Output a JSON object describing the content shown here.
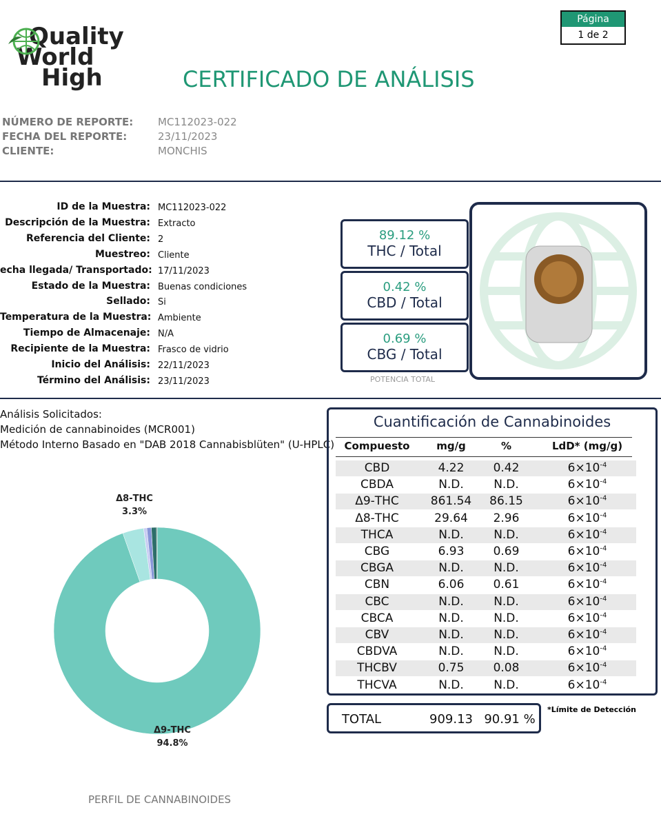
{
  "header": {
    "logo": [
      "Quality",
      "World",
      "High"
    ],
    "title": "CERTIFICADO DE ANÁLISIS",
    "page_label": "Página",
    "page": "1 de 2"
  },
  "report": [
    {
      "label": "NÚMERO DE REPORTE:",
      "value": "MC112023-022"
    },
    {
      "label": "FECHA DEL REPORTE:",
      "value": "23/11/2023"
    },
    {
      "label": "CLIENTE:",
      "value": "MONCHIS"
    }
  ],
  "sample": [
    {
      "label": "ID de la Muestra:",
      "value": "MC112023-022"
    },
    {
      "label": "Descripción de la Muestra:",
      "value": "Extracto"
    },
    {
      "label": "Referencia del Cliente:",
      "value": "2"
    },
    {
      "label": "Muestreo:",
      "value": "Cliente"
    },
    {
      "label": "echa llegada/ Transportado:",
      "value": "17/11/2023"
    },
    {
      "label": "Estado de la Muestra:",
      "value": "Buenas condiciones"
    },
    {
      "label": "Sellado:",
      "value": "Si"
    },
    {
      "label": "Temperatura de la Muestra:",
      "value": "Ambiente"
    },
    {
      "label": "Tiempo de Almacenaje:",
      "value": "N/A"
    },
    {
      "label": "Recipiente de la Muestra:",
      "value": "Frasco de vidrio"
    },
    {
      "label": "Inicio del Análisis:",
      "value": "22/11/2023"
    },
    {
      "label": "Término del Análisis:",
      "value": "23/11/2023"
    }
  ],
  "potency": {
    "items": [
      {
        "value": "89.12 %",
        "label": "THC / Total"
      },
      {
        "value": "0.42 %",
        "label": "CBD / Total"
      },
      {
        "value": "0.69 %",
        "label": "CBG / Total"
      }
    ],
    "caption": "POTENCIA TOTAL"
  },
  "analysis": {
    "title": "Análisis Solicitados:",
    "lines": [
      "Medición de cannabinoides (MCR001)",
      "Método Interno Basado en \"DAB 2018 Cannabisblüten\" (U-HPLC)"
    ]
  },
  "chart_data": {
    "type": "pie",
    "title": "PERFIL DE CANNABINOIDES",
    "categories": [
      "Δ9-THC",
      "Δ8-THC",
      null,
      null,
      null,
      null
    ],
    "values": [
      94.8,
      3.3,
      0.5,
      0.7,
      0.8,
      0.1
    ],
    "value_labels": [
      "94.8%",
      "3.3%",
      null,
      null,
      null,
      null
    ],
    "colors": [
      "#6fcabd",
      "#a9e5e1",
      "#c9cdf3",
      "#8896d8",
      "#2d6e69",
      "#1b4b47"
    ]
  },
  "table": {
    "title": "Cuantificación de Cannabinoides",
    "headers": [
      "Compuesto",
      "mg/g",
      "%",
      "LdD* (mg/g)"
    ],
    "rows": [
      [
        "CBD",
        "4.22",
        "0.42",
        "6×10",
        "-4"
      ],
      [
        "CBDA",
        "N.D.",
        "N.D.",
        "6×10",
        "-4"
      ],
      [
        "Δ9-THC",
        "861.54",
        "86.15",
        "6×10",
        "-4"
      ],
      [
        "Δ8-THC",
        "29.64",
        "2.96",
        "6×10",
        "-4"
      ],
      [
        "THCA",
        "N.D.",
        "N.D.",
        "6×10",
        "-4"
      ],
      [
        "CBG",
        "6.93",
        "0.69",
        "6×10",
        "-4"
      ],
      [
        "CBGA",
        "N.D.",
        "N.D.",
        "6×10",
        "-4"
      ],
      [
        "CBN",
        "6.06",
        "0.61",
        "6×10",
        "-4"
      ],
      [
        "CBC",
        "N.D.",
        "N.D.",
        "6×10",
        "-4"
      ],
      [
        "CBCA",
        "N.D.",
        "N.D.",
        "6×10",
        "-4"
      ],
      [
        "CBV",
        "N.D.",
        "N.D.",
        "6×10",
        "-4"
      ],
      [
        "CBDVA",
        "N.D.",
        "N.D.",
        "6×10",
        "-4"
      ],
      [
        "THCBV",
        "0.75",
        "0.08",
        "6×10",
        "-4"
      ],
      [
        "THCVA",
        "N.D.",
        "N.D.",
        "6×10",
        "-4"
      ]
    ],
    "total": [
      "TOTAL",
      "909.13",
      "90.91 %"
    ],
    "footnote": "*Límite de Detección"
  }
}
